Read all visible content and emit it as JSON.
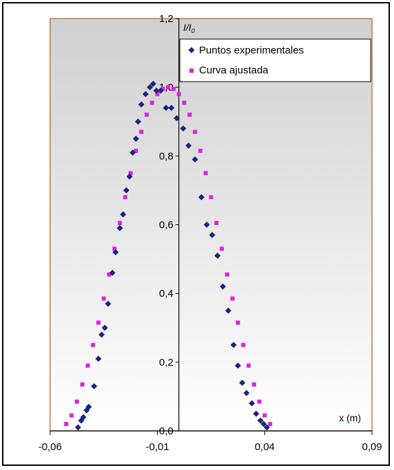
{
  "chart_data": {
    "type": "scatter",
    "title": "",
    "xlabel": "x (m)",
    "ylabel": "I/I0",
    "xlim": [
      -0.06,
      0.09
    ],
    "ylim": [
      0,
      1.2
    ],
    "x_ticks": [
      "-0,06",
      "-0,01",
      "0,04",
      "0,09"
    ],
    "y_ticks": [
      "0,0",
      "0,2",
      "0,4",
      "0,6",
      "0,8",
      "1,0",
      "1,2"
    ],
    "grid": false,
    "legend_position": "top-right",
    "colors": {
      "experimental": "#1a237e",
      "fitted": "#e020e0",
      "plot_border": "#c27a3a",
      "gradient_top": "#d0d0d0",
      "gradient_bottom": "#ffffff"
    },
    "series": [
      {
        "name": "Puntos experimentales",
        "marker": "diamond",
        "points": [
          [
            -0.047,
            0.01
          ],
          [
            -0.0455,
            0.03
          ],
          [
            -0.0445,
            0.04
          ],
          [
            -0.043,
            0.06
          ],
          [
            -0.042,
            0.07
          ],
          [
            -0.0395,
            0.13
          ],
          [
            -0.0375,
            0.21
          ],
          [
            -0.036,
            0.28
          ],
          [
            -0.0345,
            0.3
          ],
          [
            -0.033,
            0.37
          ],
          [
            -0.031,
            0.46
          ],
          [
            -0.0295,
            0.52
          ],
          [
            -0.0275,
            0.59
          ],
          [
            -0.026,
            0.63
          ],
          [
            -0.0245,
            0.7
          ],
          [
            -0.023,
            0.74
          ],
          [
            -0.0215,
            0.81
          ],
          [
            -0.02,
            0.85
          ],
          [
            -0.019,
            0.9
          ],
          [
            -0.0175,
            0.95
          ],
          [
            -0.0155,
            0.98
          ],
          [
            -0.0135,
            1.0
          ],
          [
            -0.012,
            1.01
          ],
          [
            -0.0105,
            0.99
          ],
          [
            -0.0085,
            0.99
          ],
          [
            -0.006,
            0.94
          ],
          [
            -0.0035,
            0.94
          ],
          [
            -0.001,
            0.91
          ],
          [
            0.002,
            0.88
          ],
          [
            0.0045,
            0.83
          ],
          [
            0.0075,
            0.79
          ],
          [
            0.0105,
            0.68
          ],
          [
            0.013,
            0.6
          ],
          [
            0.0155,
            0.57
          ],
          [
            0.018,
            0.51
          ],
          [
            0.0205,
            0.42
          ],
          [
            0.023,
            0.35
          ],
          [
            0.0255,
            0.25
          ],
          [
            0.0275,
            0.19
          ],
          [
            0.0295,
            0.14
          ],
          [
            0.0315,
            0.11
          ],
          [
            0.034,
            0.08
          ],
          [
            0.036,
            0.05
          ],
          [
            0.038,
            0.03
          ],
          [
            0.0395,
            0.02
          ],
          [
            0.041,
            0.01
          ]
        ]
      },
      {
        "name": "Curva ajustada",
        "marker": "square",
        "points": [
          [
            -0.0525,
            0.02
          ],
          [
            -0.05,
            0.045
          ],
          [
            -0.0475,
            0.085
          ],
          [
            -0.045,
            0.135
          ],
          [
            -0.0425,
            0.19
          ],
          [
            -0.04,
            0.25
          ],
          [
            -0.0375,
            0.315
          ],
          [
            -0.035,
            0.385
          ],
          [
            -0.0325,
            0.455
          ],
          [
            -0.03,
            0.53
          ],
          [
            -0.0275,
            0.605
          ],
          [
            -0.025,
            0.68
          ],
          [
            -0.0225,
            0.75
          ],
          [
            -0.02,
            0.815
          ],
          [
            -0.0175,
            0.87
          ],
          [
            -0.015,
            0.92
          ],
          [
            -0.0125,
            0.955
          ],
          [
            -0.01,
            0.98
          ],
          [
            -0.0075,
            0.995
          ],
          [
            -0.005,
            1.0
          ],
          [
            -0.0025,
            0.995
          ],
          [
            0.0,
            0.98
          ],
          [
            0.0025,
            0.955
          ],
          [
            0.005,
            0.92
          ],
          [
            0.0075,
            0.87
          ],
          [
            0.01,
            0.815
          ],
          [
            0.0125,
            0.75
          ],
          [
            0.015,
            0.68
          ],
          [
            0.0175,
            0.605
          ],
          [
            0.02,
            0.53
          ],
          [
            0.0225,
            0.455
          ],
          [
            0.025,
            0.385
          ],
          [
            0.0275,
            0.315
          ],
          [
            0.03,
            0.25
          ],
          [
            0.0325,
            0.19
          ],
          [
            0.035,
            0.135
          ],
          [
            0.0375,
            0.085
          ],
          [
            0.04,
            0.045
          ],
          [
            0.0425,
            0.02
          ]
        ]
      }
    ]
  }
}
